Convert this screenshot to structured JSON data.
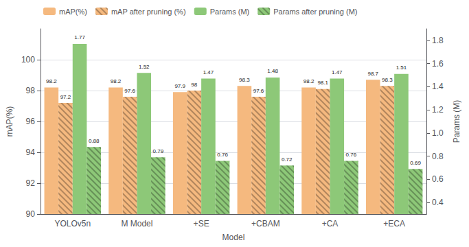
{
  "chart_data": {
    "type": "bar",
    "categories": [
      "YOLOv5n",
      "M Model",
      "+SE",
      "+CBAM",
      "+CA",
      "+ECA"
    ],
    "xlabel": "Model",
    "ylabel": "mAP(%)",
    "y2label": "Params (M)",
    "series": [
      {
        "name": "mAP(%)",
        "color": "#F5B97F",
        "values": [
          98.2,
          98.2,
          97.9,
          98.3,
          98.2,
          98.7
        ]
      },
      {
        "name": "mAP after pruning (%)",
        "color": "#F5B97F",
        "values": [
          97.2,
          97.6,
          98.0,
          97.6,
          98.1,
          98.3
        ]
      },
      {
        "name": "Params (M)",
        "color": "#8DC878",
        "axis": "y2",
        "values": [
          1.77,
          1.52,
          1.47,
          1.48,
          1.47,
          1.51
        ]
      },
      {
        "name": "Params after pruning (M)",
        "color": "#8DC878",
        "axis": "y2",
        "values": [
          0.88,
          0.79,
          0.76,
          0.72,
          0.76,
          0.69
        ]
      }
    ],
    "ylim": [
      90,
      102
    ],
    "yticks": [
      90,
      92,
      94,
      96,
      98,
      100
    ],
    "y2lim": [
      0.3,
      1.9
    ],
    "y2ticks": [
      0.4,
      0.6,
      0.8,
      {
        "value": 1,
        "label": "1.0"
      },
      1.2,
      1.4,
      1.6,
      1.8
    ],
    "grid": true,
    "legend": "upper left",
    "data_labels": true
  }
}
